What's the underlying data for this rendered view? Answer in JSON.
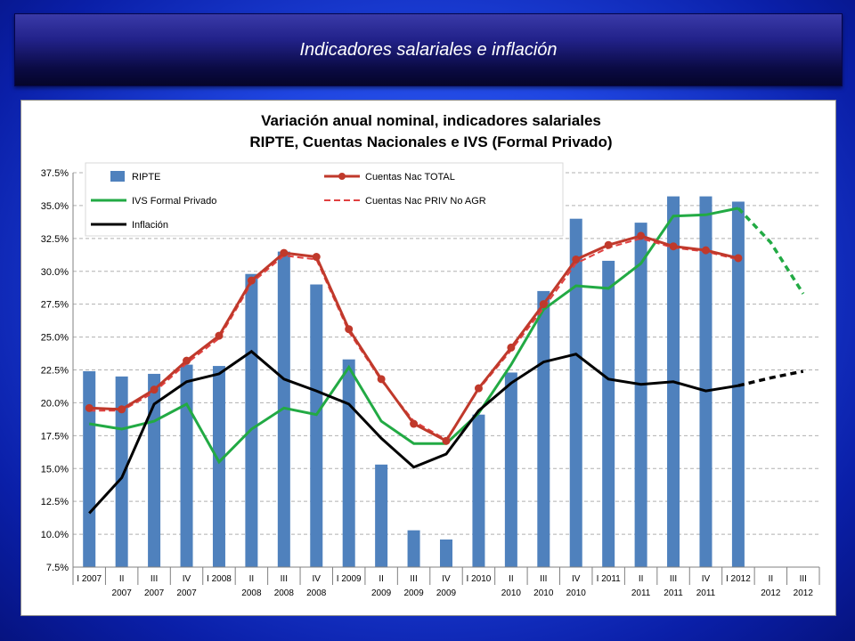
{
  "slide": {
    "title": "Indicadores salariales e inflación"
  },
  "chart_data": {
    "type": "bar",
    "title": "Variación anual nominal, indicadores salariales",
    "subtitle": "RIPTE, Cuentas  Nacionales e IVS (Formal Privado)",
    "ylim": [
      7.5,
      37.5
    ],
    "yticks": [
      "7.5%",
      "10.0%",
      "12.5%",
      "15.0%",
      "17.5%",
      "20.0%",
      "22.5%",
      "25.0%",
      "27.5%",
      "30.0%",
      "32.5%",
      "35.0%",
      "37.5%"
    ],
    "grid": true,
    "legend_position": "top",
    "categories": [
      [
        "I 2007",
        ""
      ],
      [
        "II",
        "2007"
      ],
      [
        "III",
        "2007"
      ],
      [
        "IV",
        "2007"
      ],
      [
        "I 2008",
        ""
      ],
      [
        "II",
        "2008"
      ],
      [
        "III",
        "2008"
      ],
      [
        "IV",
        "2008"
      ],
      [
        "I 2009",
        ""
      ],
      [
        "II",
        "2009"
      ],
      [
        "III",
        "2009"
      ],
      [
        "IV",
        "2009"
      ],
      [
        "I 2010",
        ""
      ],
      [
        "II",
        "2010"
      ],
      [
        "III",
        "2010"
      ],
      [
        "IV",
        "2010"
      ],
      [
        "I 2011",
        ""
      ],
      [
        "II",
        "2011"
      ],
      [
        "III",
        "2011"
      ],
      [
        "IV",
        "2011"
      ],
      [
        "I 2012",
        ""
      ],
      [
        "II",
        "2012"
      ],
      [
        "III",
        "2012"
      ]
    ],
    "series": [
      {
        "name": "RIPTE",
        "kind": "bar",
        "color": "#4f81bd",
        "values": [
          22.4,
          22.0,
          22.2,
          22.9,
          22.8,
          29.8,
          31.5,
          29.0,
          23.3,
          15.3,
          10.3,
          9.6,
          19.1,
          22.3,
          28.5,
          34.0,
          30.8,
          33.7,
          35.7,
          35.7,
          35.3,
          null,
          null
        ]
      },
      {
        "name": "Cuentas Nac TOTAL",
        "kind": "line-marker",
        "color": "#c0392b",
        "values": [
          19.6,
          19.5,
          21.0,
          23.2,
          25.1,
          29.3,
          31.4,
          31.1,
          25.6,
          21.8,
          18.4,
          17.1,
          21.1,
          24.2,
          27.5,
          30.9,
          32.0,
          32.7,
          31.9,
          31.6,
          31.0,
          null,
          null
        ]
      },
      {
        "name": "IVS Formal Privado",
        "kind": "line",
        "color": "#22aa44",
        "values": [
          18.4,
          18.0,
          18.6,
          19.9,
          15.5,
          18.0,
          19.6,
          19.1,
          22.7,
          18.6,
          16.9,
          16.9,
          19.2,
          22.9,
          27.1,
          28.9,
          28.7,
          30.6,
          34.2,
          34.3,
          34.8,
          32.2,
          28.3
        ],
        "projected_from_index": 20
      },
      {
        "name": "Cuentas Nac PRIV No AGR",
        "kind": "dashed",
        "color": "#e04040",
        "values": [
          19.4,
          19.4,
          20.8,
          23.0,
          24.9,
          29.1,
          31.2,
          30.9,
          25.4,
          21.7,
          18.6,
          17.2,
          21.0,
          24.0,
          27.2,
          30.6,
          31.8,
          32.5,
          31.8,
          31.5,
          30.9,
          null,
          null
        ]
      },
      {
        "name": "Inflación",
        "kind": "line",
        "color": "#000000",
        "values": [
          11.6,
          14.3,
          19.9,
          21.6,
          22.2,
          23.9,
          21.8,
          20.9,
          19.9,
          17.3,
          15.1,
          16.1,
          19.4,
          21.5,
          23.1,
          23.7,
          21.8,
          21.4,
          21.6,
          20.9,
          21.3,
          21.9,
          22.4
        ],
        "projected_from_index": 20
      }
    ],
    "colors": {
      "grid": "#b0b0b0",
      "axis": "#808080",
      "text": "#000000"
    }
  }
}
